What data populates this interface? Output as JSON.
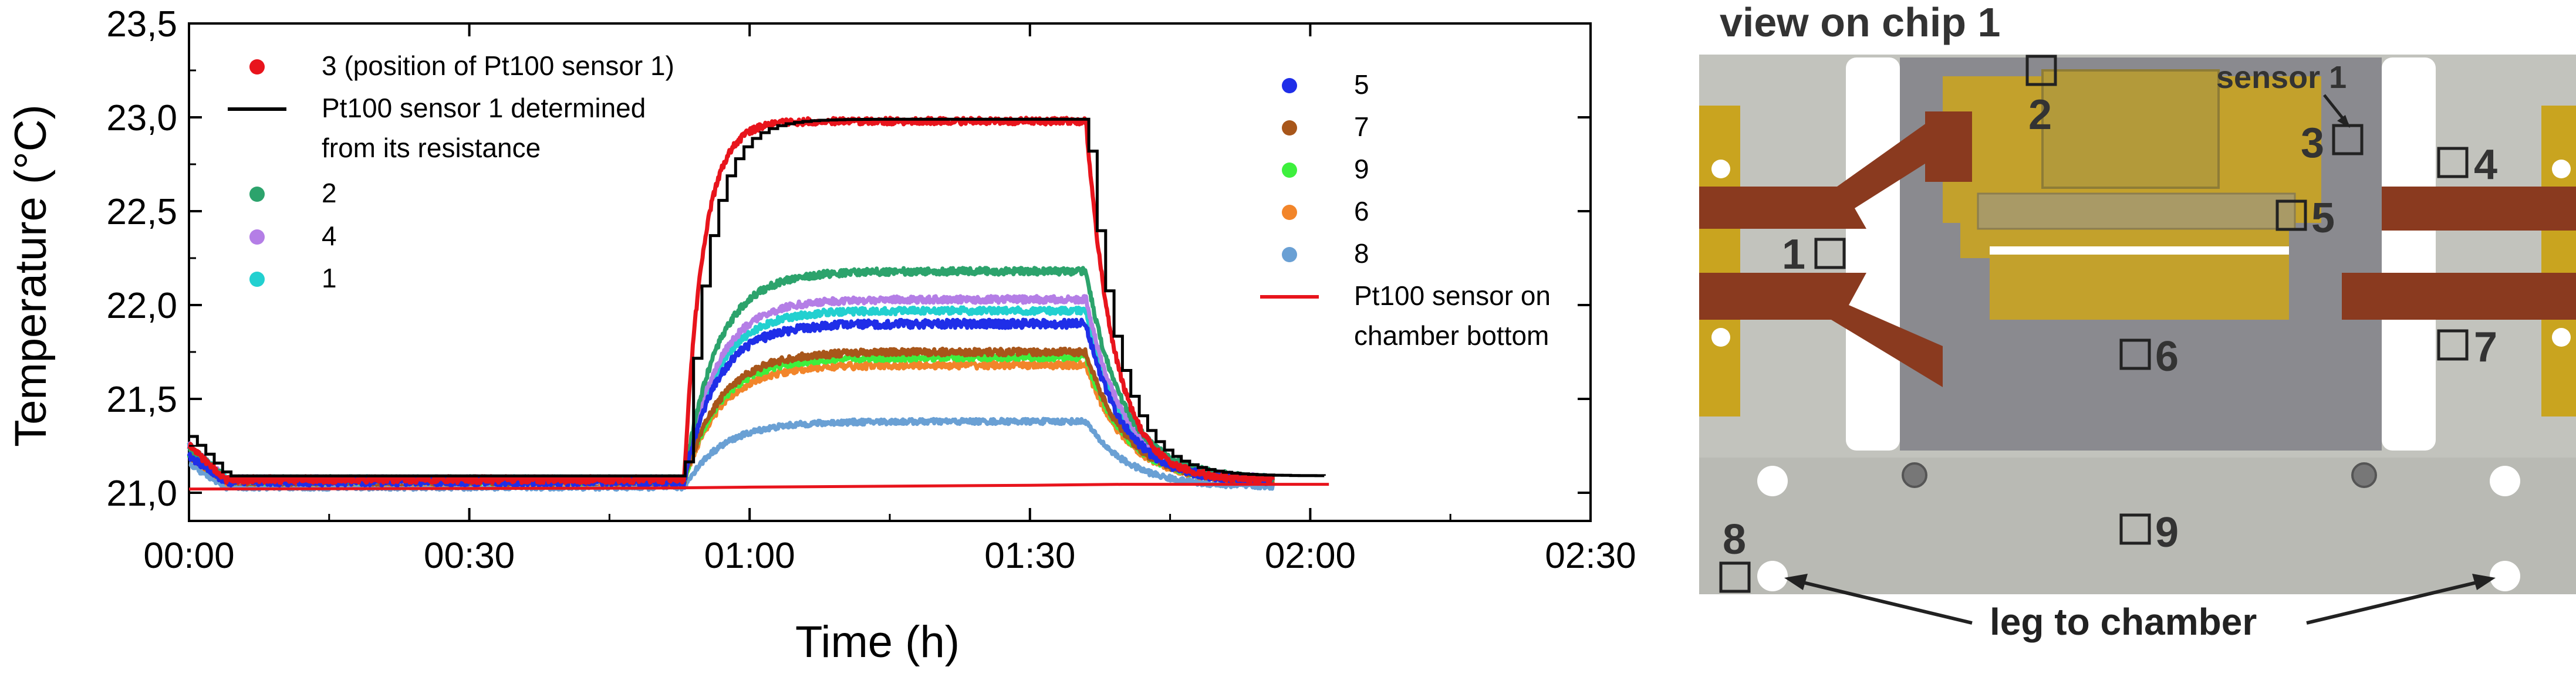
{
  "chart_data": {
    "type": "line",
    "xlabel": "Time (h)",
    "ylabel": "Temperature (°C)",
    "xlim": [
      0,
      150
    ],
    "ylim": [
      20.85,
      23.5
    ],
    "x_tick_values": [
      0,
      30,
      60,
      90,
      120,
      150
    ],
    "x_tick_labels": [
      "00:00",
      "00:30",
      "01:00",
      "01:30",
      "02:00",
      "02:30"
    ],
    "y_tick_values": [
      21.0,
      21.5,
      22.0,
      22.5,
      23.0,
      23.5
    ],
    "y_tick_labels": [
      "21,0",
      "21,5",
      "22,0",
      "22,5",
      "23,0",
      "23,5"
    ],
    "series": [
      {
        "name": "3 (position of Pt100 sensor 1)",
        "legend_lines": [
          "3 (position of Pt100 sensor 1)"
        ],
        "color": "#e8141c",
        "style": "dots",
        "base": 21.07,
        "plateau": 22.98,
        "start": 21.25,
        "tau_rise": 2.0,
        "tau_fall": 3.0,
        "noise": 0.018,
        "end": 116
      },
      {
        "name": "Pt100 sensor 1 determined from its resistance",
        "legend_lines": [
          "Pt100 sensor 1 determined",
          "from its resistance"
        ],
        "color": "#000000",
        "style": "step",
        "base": 21.09,
        "plateau": 22.99,
        "start": 21.3,
        "tau_rise": 2.5,
        "tau_fall": 3.2,
        "noise": 0.0,
        "end": 122
      },
      {
        "name": "2",
        "legend_lines": [
          "2"
        ],
        "color": "#2ca36c",
        "style": "dots",
        "base": 21.07,
        "plateau": 22.18,
        "start": 21.25,
        "tau_rise": 3.5,
        "tau_fall": 4.0,
        "noise": 0.018,
        "end": 116
      },
      {
        "name": "4",
        "legend_lines": [
          "4"
        ],
        "color": "#b47ee6",
        "style": "dots",
        "base": 21.07,
        "plateau": 22.03,
        "start": 21.25,
        "tau_rise": 3.5,
        "tau_fall": 4.0,
        "noise": 0.018,
        "end": 116
      },
      {
        "name": "1",
        "legend_lines": [
          "1"
        ],
        "color": "#22d0d0",
        "style": "dots",
        "base": 21.07,
        "plateau": 21.97,
        "start": 21.25,
        "tau_rise": 3.5,
        "tau_fall": 4.0,
        "noise": 0.018,
        "end": 116
      },
      {
        "name": "5",
        "legend_lines": [
          "5"
        ],
        "color": "#1f2ee8",
        "style": "dots",
        "base": 21.06,
        "plateau": 21.9,
        "start": 21.2,
        "tau_rise": 3.5,
        "tau_fall": 4.0,
        "noise": 0.022,
        "end": 116
      },
      {
        "name": "7",
        "legend_lines": [
          "7"
        ],
        "color": "#a8561a",
        "style": "dots",
        "base": 21.06,
        "plateau": 21.75,
        "start": 21.2,
        "tau_rise": 3.8,
        "tau_fall": 4.2,
        "noise": 0.018,
        "end": 116
      },
      {
        "name": "9",
        "legend_lines": [
          "9"
        ],
        "color": "#3df03d",
        "style": "dots",
        "base": 21.06,
        "plateau": 21.72,
        "start": 21.2,
        "tau_rise": 3.8,
        "tau_fall": 4.2,
        "noise": 0.016,
        "end": 116
      },
      {
        "name": "6",
        "legend_lines": [
          "6"
        ],
        "color": "#f2852a",
        "style": "dots",
        "base": 21.06,
        "plateau": 21.68,
        "start": 21.2,
        "tau_rise": 3.8,
        "tau_fall": 4.2,
        "noise": 0.018,
        "end": 116
      },
      {
        "name": "8",
        "legend_lines": [
          "8"
        ],
        "color": "#6aa0d4",
        "style": "dots",
        "base": 21.03,
        "plateau": 21.38,
        "start": 21.15,
        "tau_rise": 4.0,
        "tau_fall": 4.5,
        "noise": 0.014,
        "end": 116
      },
      {
        "name": "Pt100 sensor on chamber bottom",
        "legend_lines": [
          "Pt100 sensor on",
          "chamber bottom"
        ],
        "color": "#e8141c",
        "style": "line",
        "x": [
          0,
          50,
          60,
          90,
          100,
          122
        ],
        "y": [
          21.02,
          21.025,
          21.03,
          21.04,
          21.045,
          21.045
        ]
      }
    ],
    "events": {
      "heating_on": 53,
      "heating_off": 96
    }
  },
  "photo": {
    "title": "view on chip 1",
    "sensor_label": "sensor 1",
    "leg_label": "leg to chamber",
    "markers": [
      "1",
      "2",
      "3",
      "4",
      "5",
      "6",
      "7",
      "8",
      "9"
    ]
  }
}
